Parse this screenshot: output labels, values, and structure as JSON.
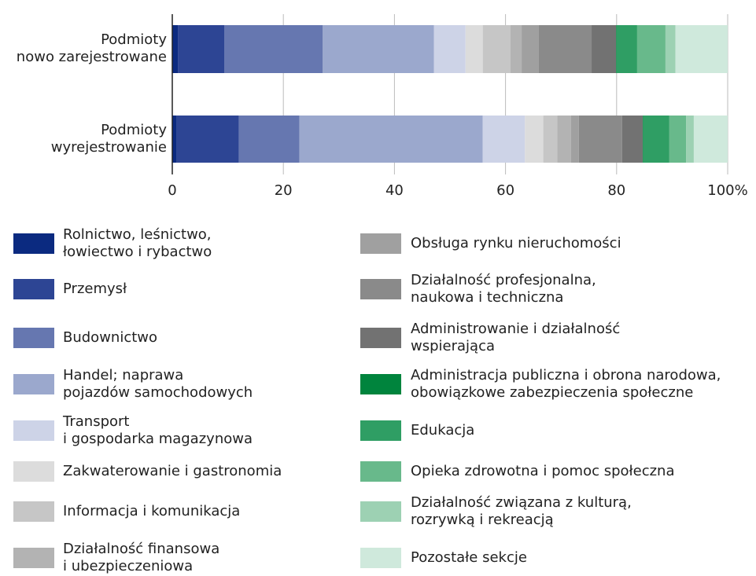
{
  "chart_data": {
    "type": "stacked-bar-horizontal",
    "categories": [
      "Podmioty\nnowo zarejestrowane",
      "Podmioty\nwyrejestrowanie"
    ],
    "xlim": [
      0,
      100
    ],
    "xticks": [
      0,
      20,
      40,
      60,
      80,
      {
        "value": 100,
        "label": "100%"
      }
    ],
    "grid": true,
    "series": [
      {
        "name": "Rolnictwo, leśnictwo,\nłowiectwo i rybactwo",
        "color": "#0b2a80",
        "values": [
          1.0,
          0.8
        ]
      },
      {
        "name": "Przemysł",
        "color": "#2d4594",
        "values": [
          8.4,
          11.2
        ]
      },
      {
        "name": "Budownictwo",
        "color": "#6677b0",
        "values": [
          17.7,
          10.9
        ]
      },
      {
        "name": "Handel; naprawa\npojazdów samochodowych",
        "color": "#9ba8cd",
        "values": [
          20.0,
          33.0
        ]
      },
      {
        "name": "Transport\ni gospodarka magazynowa",
        "color": "#cdd3e7",
        "values": [
          5.7,
          7.6
        ]
      },
      {
        "name": "Zakwaterowanie i gastronomia",
        "color": "#dcdcdc",
        "values": [
          3.1,
          3.3
        ]
      },
      {
        "name": "Informacja i komunikacja",
        "color": "#c6c6c6",
        "values": [
          5.0,
          2.5
        ]
      },
      {
        "name": "Działalność finansowa\ni ubezpieczeniowa",
        "color": "#b3b3b3",
        "values": [
          2.0,
          2.5
        ]
      },
      {
        "name": "Obsługa rynku nieruchomości",
        "color": "#a0a0a0",
        "values": [
          3.1,
          1.4
        ]
      },
      {
        "name": "Działalność profesjonalna,\nnaukowa i techniczna",
        "color": "#8a8a8a",
        "values": [
          9.5,
          7.8
        ]
      },
      {
        "name": "Administrowanie i działalność\nwspierająca",
        "color": "#727272",
        "values": [
          4.4,
          3.7
        ]
      },
      {
        "name": "Administracja publiczna i obrona narodowa,\nobowiązkowe zabezpieczenia społeczne",
        "color": "#00843d",
        "values": [
          0.1,
          0.1
        ]
      },
      {
        "name": "Edukacja",
        "color": "#2f9e64",
        "values": [
          3.7,
          4.7
        ]
      },
      {
        "name": "Opieka zdrowotna i pomoc społeczna",
        "color": "#68b98b",
        "values": [
          5.1,
          3.0
        ]
      },
      {
        "name": "Działalność związana z kulturą,\nrozrywką i rekreacją",
        "color": "#9dd1b3",
        "values": [
          1.8,
          1.4
        ]
      },
      {
        "name": "Pozostałe sekcje",
        "color": "#cfe9dc",
        "values": [
          9.4,
          6.1
        ]
      }
    ]
  }
}
